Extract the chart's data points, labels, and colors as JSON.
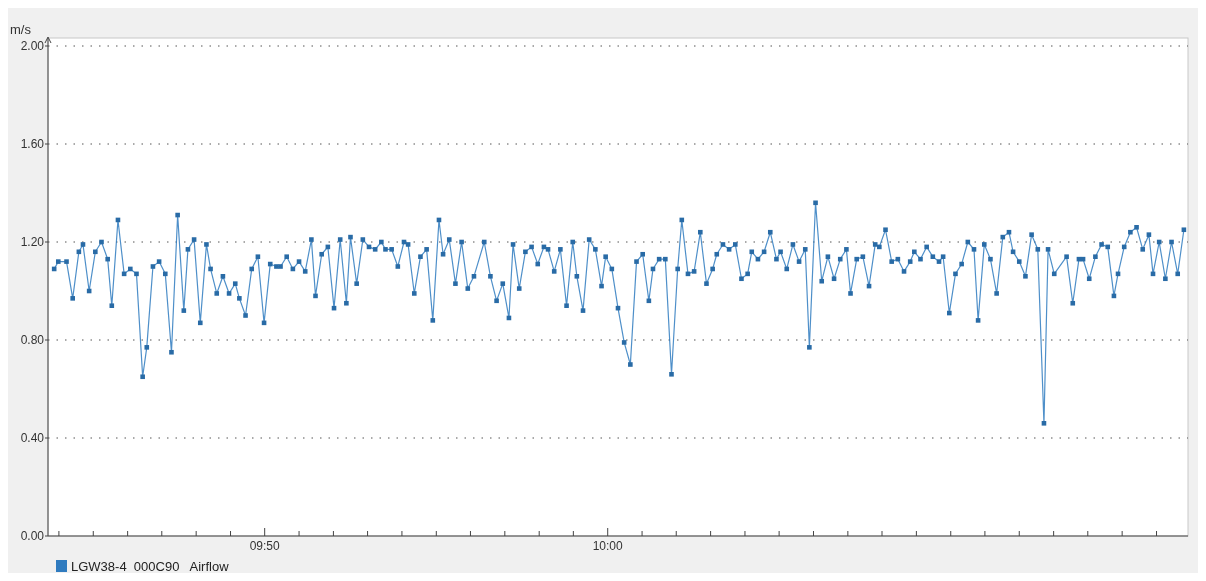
{
  "chart_data": {
    "type": "line",
    "ylabel": "m/s",
    "xlim": [
      9.728,
      10.282
    ],
    "xticks": [
      {
        "value": 9.7333,
        "label": null
      },
      {
        "value": 9.75,
        "label": null
      },
      {
        "value": 9.7667,
        "label": null
      },
      {
        "value": 9.7833,
        "label": null
      },
      {
        "value": 9.8,
        "label": null
      },
      {
        "value": 9.8167,
        "label": null
      },
      {
        "value": 9.8333,
        "label": "09:50"
      },
      {
        "value": 9.85,
        "label": null
      },
      {
        "value": 9.8667,
        "label": null
      },
      {
        "value": 9.8833,
        "label": null
      },
      {
        "value": 9.9,
        "label": null
      },
      {
        "value": 9.9167,
        "label": null
      },
      {
        "value": 9.9333,
        "label": null
      },
      {
        "value": 9.95,
        "label": null
      },
      {
        "value": 9.9667,
        "label": null
      },
      {
        "value": 9.9833,
        "label": null
      },
      {
        "value": 10,
        "label": "10:00"
      },
      {
        "value": 10.0167,
        "label": null
      },
      {
        "value": 10.0333,
        "label": null
      },
      {
        "value": 10.05,
        "label": null
      },
      {
        "value": 10.0667,
        "label": null
      },
      {
        "value": 10.0833,
        "label": null
      },
      {
        "value": 10.1,
        "label": null
      },
      {
        "value": 10.1167,
        "label": null
      },
      {
        "value": 10.1333,
        "label": null
      },
      {
        "value": 10.15,
        "label": null
      },
      {
        "value": 10.1667,
        "label": null
      },
      {
        "value": 10.1833,
        "label": null
      },
      {
        "value": 10.2,
        "label": null
      },
      {
        "value": 10.2167,
        "label": null
      },
      {
        "value": 10.2333,
        "label": null
      },
      {
        "value": 10.25,
        "label": null
      },
      {
        "value": 10.2667,
        "label": null
      }
    ],
    "ylim": [
      0,
      2
    ],
    "yticks": [
      {
        "value": 0,
        "label": "0.00"
      },
      {
        "value": 0.4,
        "label": "0.40"
      },
      {
        "value": 0.8,
        "label": "0.80"
      },
      {
        "value": 1.2,
        "label": "1.20"
      },
      {
        "value": 1.6,
        "label": "1.60"
      },
      {
        "value": 2,
        "label": "2.00"
      }
    ],
    "grid": "y",
    "legend": "bottom left",
    "marker": "square",
    "line_style": "solid",
    "series": [
      {
        "name": "LGW38-4_000C90   Airflow",
        "color": "#2f7bbf",
        "x": [
          9.731,
          9.733,
          9.737,
          9.74,
          9.743,
          9.745,
          9.748,
          9.751,
          9.754,
          9.757,
          9.759,
          9.762,
          9.765,
          9.768,
          9.771,
          9.774,
          9.776,
          9.779,
          9.782,
          9.785,
          9.788,
          9.791,
          9.794,
          9.796,
          9.799,
          9.802,
          9.805,
          9.807,
          9.81,
          9.813,
          9.816,
          9.819,
          9.821,
          9.824,
          9.827,
          9.83,
          9.833,
          9.836,
          9.839,
          9.841,
          9.844,
          9.847,
          9.85,
          9.853,
          9.856,
          9.858,
          9.861,
          9.864,
          9.867,
          9.87,
          9.873,
          9.875,
          9.878,
          9.881,
          9.884,
          9.887,
          9.89,
          9.892,
          9.895,
          9.898,
          9.901,
          9.903,
          9.906,
          9.909,
          9.912,
          9.915,
          9.918,
          9.92,
          9.923,
          9.926,
          9.929,
          9.932,
          9.935,
          9.94,
          9.943,
          9.946,
          9.949,
          9.952,
          9.954,
          9.957,
          9.96,
          9.963,
          9.966,
          9.969,
          9.971,
          9.974,
          9.977,
          9.98,
          9.983,
          9.985,
          9.988,
          9.991,
          9.994,
          9.997,
          9.999,
          10.002,
          10.005,
          10.008,
          10.011,
          10.014,
          10.017,
          10.02,
          10.022,
          10.025,
          10.028,
          10.031,
          10.034,
          10.036,
          10.039,
          10.042,
          10.045,
          10.048,
          10.051,
          10.053,
          10.056,
          10.059,
          10.062,
          10.065,
          10.068,
          10.07,
          10.073,
          10.076,
          10.079,
          10.082,
          10.084,
          10.087,
          10.09,
          10.093,
          10.096,
          10.098,
          10.101,
          10.104,
          10.107,
          10.11,
          10.113,
          10.116,
          10.118,
          10.121,
          10.124,
          10.127,
          10.13,
          10.132,
          10.135,
          10.138,
          10.141,
          10.144,
          10.147,
          10.149,
          10.152,
          10.155,
          10.158,
          10.161,
          10.163,
          10.166,
          10.169,
          10.172,
          10.175,
          10.178,
          10.18,
          10.183,
          10.186,
          10.189,
          10.192,
          10.195,
          10.197,
          10.2,
          10.203,
          10.206,
          10.209,
          10.212,
          10.214,
          10.217,
          10.223,
          10.226,
          10.229,
          10.231,
          10.234,
          10.237,
          10.24,
          10.243,
          10.246,
          10.248,
          10.251,
          10.254,
          10.257,
          10.26,
          10.263,
          10.265,
          10.268,
          10.271,
          10.274,
          10.277,
          10.28
        ],
        "values": [
          1.09,
          1.12,
          1.12,
          0.97,
          1.16,
          1.19,
          1.0,
          1.16,
          1.2,
          1.13,
          0.94,
          1.29,
          1.07,
          1.09,
          1.07,
          0.65,
          0.77,
          1.1,
          1.12,
          1.07,
          0.75,
          1.31,
          0.92,
          1.17,
          1.21,
          0.87,
          1.19,
          1.09,
          0.99,
          1.06,
          0.99,
          1.03,
          0.97,
          0.9,
          1.09,
          1.14,
          0.87,
          1.11,
          1.1,
          1.1,
          1.14,
          1.09,
          1.12,
          1.08,
          1.21,
          0.98,
          1.15,
          1.18,
          0.93,
          1.21,
          0.95,
          1.22,
          1.03,
          1.21,
          1.18,
          1.17,
          1.2,
          1.17,
          1.17,
          1.1,
          1.2,
          1.19,
          0.99,
          1.14,
          1.17,
          0.88,
          1.29,
          1.15,
          1.21,
          1.03,
          1.2,
          1.01,
          1.06,
          1.2,
          1.06,
          0.96,
          1.03,
          0.89,
          1.19,
          1.01,
          1.16,
          1.18,
          1.11,
          1.18,
          1.17,
          1.08,
          1.17,
          0.94,
          1.2,
          1.06,
          0.92,
          1.21,
          1.17,
          1.02,
          1.14,
          1.09,
          0.93,
          0.79,
          0.7,
          1.12,
          1.15,
          0.96,
          1.09,
          1.13,
          1.13,
          0.66,
          1.09,
          1.29,
          1.07,
          1.08,
          1.24,
          1.03,
          1.09,
          1.15,
          1.19,
          1.17,
          1.19,
          1.05,
          1.07,
          1.16,
          1.13,
          1.16,
          1.24,
          1.13,
          1.16,
          1.09,
          1.19,
          1.12,
          1.17,
          0.77,
          1.36,
          1.04,
          1.14,
          1.05,
          1.13,
          1.17,
          0.99,
          1.13,
          1.14,
          1.02,
          1.19,
          1.18,
          1.25,
          1.12,
          1.13,
          1.08,
          1.12,
          1.16,
          1.13,
          1.18,
          1.14,
          1.12,
          1.14,
          0.91,
          1.07,
          1.11,
          1.2,
          1.17,
          0.88,
          1.19,
          1.13,
          0.99,
          1.22,
          1.24,
          1.16,
          1.12,
          1.06,
          1.23,
          1.17,
          0.46,
          1.17,
          1.07,
          1.14,
          0.95,
          1.13,
          1.13,
          1.05,
          1.14,
          1.19,
          1.18,
          0.98,
          1.07,
          1.18,
          1.24,
          1.26,
          1.17,
          1.23,
          1.07,
          1.2,
          1.05,
          1.2,
          1.07,
          1.25
        ]
      }
    ]
  }
}
